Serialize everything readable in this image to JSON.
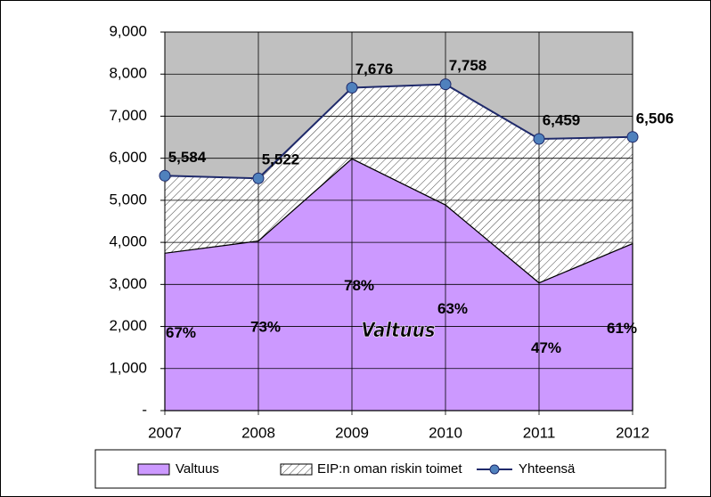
{
  "chart_data": {
    "type": "area",
    "categories": [
      "2007",
      "2008",
      "2009",
      "2010",
      "2011",
      "2012"
    ],
    "series": [
      {
        "name": "Valtuus",
        "color": "#cc99ff",
        "values": [
          3741,
          4031,
          5987,
          4888,
          3036,
          3969
        ],
        "share_labels": [
          "67%",
          "73%",
          "78%",
          "63%",
          "47%",
          "61%"
        ]
      },
      {
        "name": "EIP:n oman riskin toimet",
        "color": "#ffffff",
        "values": [
          1843,
          1491,
          1689,
          2870,
          3423,
          2537
        ]
      },
      {
        "name": "Yhteensä",
        "color": "#1f2a6b",
        "marker_color": "#4f81bd",
        "values": [
          5584,
          5522,
          7676,
          7758,
          6459,
          6506
        ],
        "value_labels": [
          "5,584",
          "5,522",
          "7,676",
          "7,758",
          "6,459",
          "6,506"
        ]
      }
    ],
    "annotation": "Valtuus",
    "ylim": [
      0,
      9000
    ],
    "yticks": [
      {
        "value": 0,
        "label": "-"
      },
      {
        "value": 1000,
        "label": "1,000"
      },
      {
        "value": 2000,
        "label": "2,000"
      },
      {
        "value": 3000,
        "label": "3,000"
      },
      {
        "value": 4000,
        "label": "4,000"
      },
      {
        "value": 5000,
        "label": "5,000"
      },
      {
        "value": 6000,
        "label": "6,000"
      },
      {
        "value": 7000,
        "label": "7,000"
      },
      {
        "value": 8000,
        "label": "8,000"
      },
      {
        "value": 9000,
        "label": "9,000"
      }
    ],
    "grid": true,
    "plot_background": "#c0c0c0"
  }
}
